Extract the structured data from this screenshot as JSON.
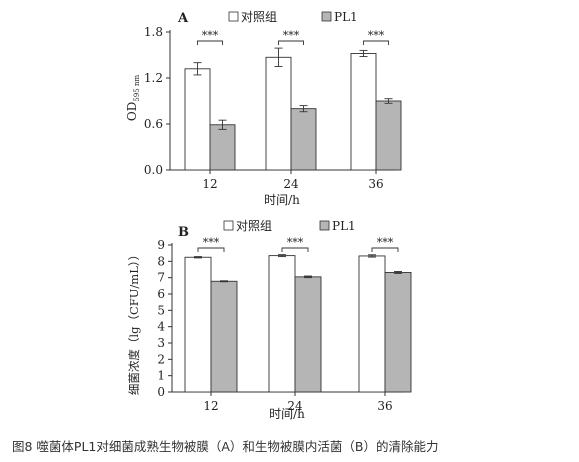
{
  "figure": {
    "caption": "图8 噬菌体PL1对细菌成熟生物被膜（A）和生物被膜内活菌（B）的清除能力"
  },
  "colors": {
    "control": "#ffffff",
    "treatment": "#b5b5b5",
    "axis": "#333333"
  },
  "chart_data": [
    {
      "type": "bar",
      "panel_label": "A",
      "categories": [
        "12",
        "24",
        "36"
      ],
      "series": [
        {
          "name": "对照组",
          "values": [
            1.32,
            1.47,
            1.52
          ],
          "errors": [
            0.08,
            0.12,
            0.04
          ]
        },
        {
          "name": "PL1",
          "values": [
            0.59,
            0.8,
            0.9
          ],
          "errors": [
            0.06,
            0.04,
            0.03
          ]
        }
      ],
      "xlabel": "时间/h",
      "ylabel_main": "OD",
      "ylabel_sub": "595 nm",
      "ylim": [
        0,
        1.8
      ],
      "yticks": [
        "0.0",
        "0.6",
        "1.2",
        "1.8"
      ],
      "significance": [
        "***",
        "***",
        "***"
      ],
      "legend_position": "top"
    },
    {
      "type": "bar",
      "panel_label": "B",
      "categories": [
        "12",
        "24",
        "36"
      ],
      "series": [
        {
          "name": "对照组",
          "values": [
            8.25,
            8.35,
            8.33
          ],
          "errors": [
            0.04,
            0.06,
            0.07
          ]
        },
        {
          "name": "PL1",
          "values": [
            6.78,
            7.05,
            7.32
          ],
          "errors": [
            0.03,
            0.05,
            0.06
          ]
        }
      ],
      "xlabel": "时间/h",
      "ylabel": "细菌浓度（lg（CFU/mL））",
      "ylim": [
        0,
        9
      ],
      "yticks": [
        "0",
        "1",
        "2",
        "3",
        "4",
        "5",
        "6",
        "7",
        "8",
        "9"
      ],
      "significance": [
        "***",
        "***",
        "***"
      ],
      "legend_position": "top"
    }
  ]
}
